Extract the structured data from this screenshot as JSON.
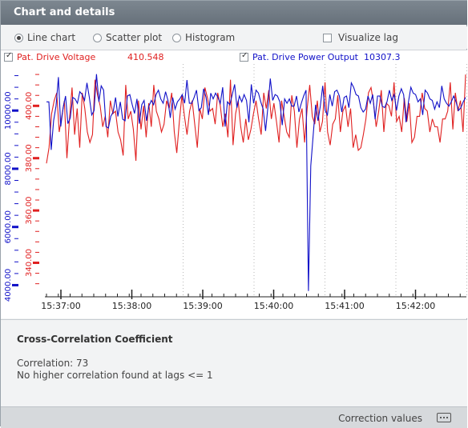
{
  "panel": {
    "title": "Chart and details"
  },
  "options": {
    "line_chart": "Line chart",
    "scatter_plot": "Scatter plot",
    "histogram": "Histogram",
    "visualize_lag": "Visualize lag",
    "selected": "line"
  },
  "legend": {
    "series1_name": "Pat. Drive Voltage",
    "series1_value": "410.548",
    "series2_name": "Pat. Drive Power Output",
    "series2_value": "10307.3"
  },
  "colors": {
    "series1": "#e02020",
    "series2": "#1010c8",
    "title_bg": "#6d7780"
  },
  "chart_data": {
    "type": "line",
    "x_ticks": [
      "15:37:00",
      "15:38:00",
      "15:39:00",
      "15:40:00",
      "15:41:00",
      "15:42:00"
    ],
    "y_left_blue_ticks": [
      "4000.00",
      "6000.00",
      "8000.00",
      "10000.00"
    ],
    "y_left_red_ticks": [
      "340.00",
      "360.00",
      "380.00",
      "400.00"
    ],
    "series": [
      {
        "name": "Pat. Drive Voltage",
        "axis": "red",
        "values": [
          378,
          384,
          397,
          402,
          405,
          390,
          396,
          402,
          380,
          395,
          407,
          389,
          399,
          384,
          405,
          399,
          390,
          386,
          389,
          410,
          404,
          400,
          392,
          396,
          388,
          402,
          397,
          398,
          390,
          387,
          381,
          408,
          395,
          398,
          391,
          379,
          402,
          391,
          400,
          388,
          401,
          392,
          408,
          398,
          395,
          390,
          393,
          402,
          399,
          405,
          390,
          382,
          394,
          404,
          396,
          389,
          398,
          402,
          393,
          384,
          399,
          395,
          407,
          403,
          398,
          399,
          393,
          405,
          400,
          392,
          397,
          388,
          410,
          385,
          397,
          402,
          392,
          386,
          395,
          387,
          391,
          397,
          402,
          395,
          389,
          405,
          399,
          406,
          395,
          401,
          394,
          386,
          402,
          396,
          390,
          388,
          404,
          398,
          384,
          395,
          399,
          386,
          399,
          408,
          396,
          393,
          402,
          390,
          394,
          409,
          390,
          385,
          393,
          395,
          404,
          390,
          398,
          400,
          392,
          399,
          384,
          389,
          383,
          384,
          389,
          395,
          405,
          407,
          401,
          392,
          398,
          406,
          390,
          401,
          400,
          396,
          409,
          394,
          396,
          390,
          403,
          394,
          401,
          386,
          388,
          396,
          396,
          405,
          399,
          398,
          390,
          395,
          392,
          392,
          386,
          395,
          395,
          398,
          409,
          391,
          405,
          398,
          402,
          390,
          412
        ]
      },
      {
        "name": "Pat. Drive Power Output",
        "axis": "blue",
        "values": [
          10300,
          10300,
          8650,
          9650,
          10150,
          11150,
          9450,
          10100,
          10500,
          9550,
          9750,
          10450,
          10400,
          10250,
          10650,
          10550,
          10350,
          10950,
          10450,
          9850,
          10000,
          11250,
          10300,
          10850,
          10700,
          9450,
          9400,
          9800,
          9950,
          10450,
          9800,
          10300,
          9700,
          9650,
          10500,
          10550,
          10200,
          9900,
          10400,
          9550,
          10200,
          10350,
          9650,
          10150,
          10350,
          10200,
          10550,
          10700,
          10400,
          10250,
          10650,
          10350,
          9750,
          10450,
          10050,
          10300,
          10400,
          10550,
          10250,
          11050,
          10250,
          10250,
          10450,
          10700,
          10000,
          10100,
          10750,
          10450,
          9850,
          10600,
          10400,
          10600,
          10450,
          10250,
          10800,
          9450,
          10300,
          10200,
          10550,
          10900,
          10100,
          10500,
          10300,
          10550,
          10350,
          9600,
          10900,
          10250,
          10700,
          10600,
          10300,
          10050,
          9300,
          10150,
          11100,
          10350,
          10550,
          10500,
          10300,
          9500,
          10400,
          10250,
          10400,
          10150,
          10150,
          10500,
          9950,
          10250,
          10500,
          10700,
          3800,
          8100,
          9150,
          10200,
          9650,
          10150,
          10850,
          10000,
          9850,
          10550,
          10150,
          10650,
          10700,
          10500,
          9950,
          10450,
          10500,
          10100,
          10950,
          10800,
          10550,
          10500,
          10100,
          9950,
          10050,
          10500,
          10250,
          10550,
          9700,
          10500,
          10500,
          10150,
          10100,
          10300,
          10700,
          10350,
          10550,
          10000,
          10500,
          10750,
          10550,
          9600,
          10300,
          10800,
          10600,
          10550,
          10300,
          10400,
          9850,
          10700,
          10600,
          10400,
          10350,
          10050,
          10300,
          10100,
          10850,
          10400,
          10250,
          10150,
          10300,
          10500,
          10300,
          10000,
          10100,
          10300,
          10450
        ]
      }
    ]
  },
  "details": {
    "heading": "Cross-Correlation Coefficient",
    "correlation": "Correlation: 73",
    "lag_note": "No higher correlation found at lags <= 1"
  },
  "footer": {
    "correction_label": "Correction values"
  }
}
